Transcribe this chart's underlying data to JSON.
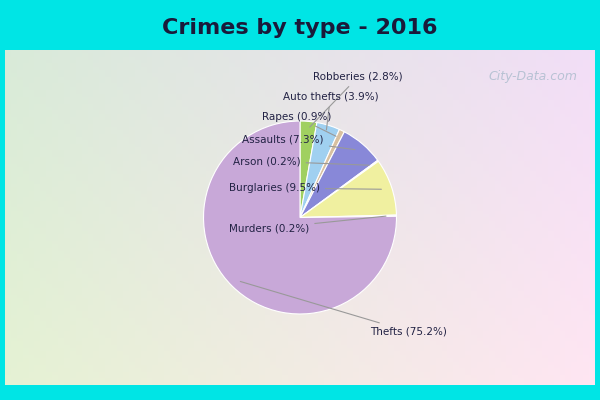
{
  "title": "Crimes by type - 2016",
  "title_fontsize": 16,
  "title_fontweight": "bold",
  "slices": [
    {
      "label": "Thefts",
      "pct": 75.2,
      "color": "#C8A8D8"
    },
    {
      "label": "Murders",
      "pct": 0.2,
      "color": "#F0D0D0"
    },
    {
      "label": "Burglaries",
      "pct": 9.5,
      "color": "#F0F0A0"
    },
    {
      "label": "Arson",
      "pct": 0.2,
      "color": "#F8C8A8"
    },
    {
      "label": "Assaults",
      "pct": 7.3,
      "color": "#8888D8"
    },
    {
      "label": "Rapes",
      "pct": 0.9,
      "color": "#D8C0A0"
    },
    {
      "label": "Auto thefts",
      "pct": 3.9,
      "color": "#A0D0F0"
    },
    {
      "label": "Robberies",
      "pct": 2.8,
      "color": "#A0D060"
    }
  ],
  "cyan_color": "#00E5E5",
  "bg_color_top": "#D8F0D8",
  "bg_color_bottom": "#D0E8F0",
  "watermark": "City-Data.com",
  "fig_width": 6.0,
  "fig_height": 4.0
}
